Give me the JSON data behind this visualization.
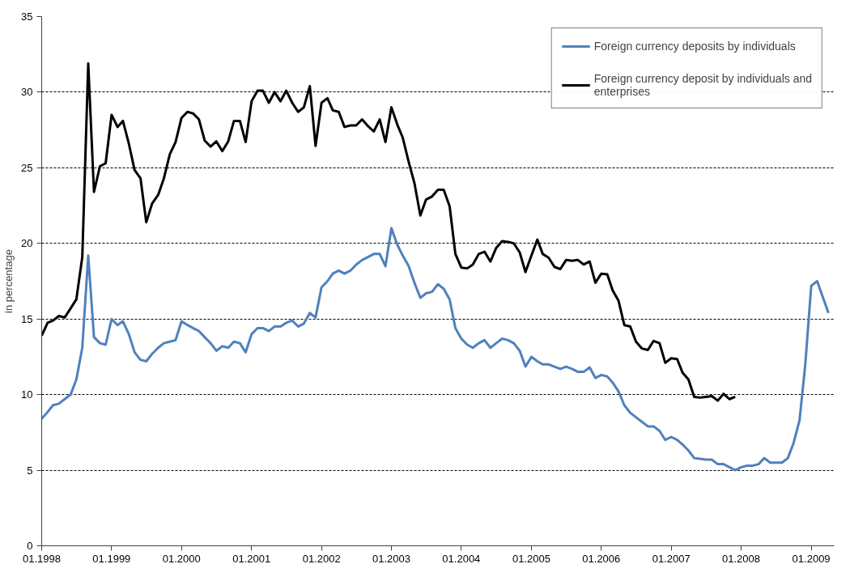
{
  "chart_data": {
    "type": "line",
    "ylabel": "in percentage",
    "x": [
      "1998-01",
      "1998-02",
      "1998-03",
      "1998-04",
      "1998-05",
      "1998-06",
      "1998-07",
      "1998-08",
      "1998-09",
      "1998-10",
      "1998-11",
      "1998-12",
      "1999-01",
      "1999-02",
      "1999-03",
      "1999-04",
      "1999-05",
      "1999-06",
      "1999-07",
      "1999-08",
      "1999-09",
      "1999-10",
      "1999-11",
      "1999-12",
      "2000-01",
      "2000-02",
      "2000-03",
      "2000-04",
      "2000-05",
      "2000-06",
      "2000-07",
      "2000-08",
      "2000-09",
      "2000-10",
      "2000-11",
      "2000-12",
      "2001-01",
      "2001-02",
      "2001-03",
      "2001-04",
      "2001-05",
      "2001-06",
      "2001-07",
      "2001-08",
      "2001-09",
      "2001-10",
      "2001-11",
      "2001-12",
      "2002-01",
      "2002-02",
      "2002-03",
      "2002-04",
      "2002-05",
      "2002-06",
      "2002-07",
      "2002-08",
      "2002-09",
      "2002-10",
      "2002-11",
      "2002-12",
      "2003-01",
      "2003-02",
      "2003-03",
      "2003-04",
      "2003-05",
      "2003-06",
      "2003-07",
      "2003-08",
      "2003-09",
      "2003-10",
      "2003-11",
      "2003-12",
      "2004-01",
      "2004-02",
      "2004-03",
      "2004-04",
      "2004-05",
      "2004-06",
      "2004-07",
      "2004-08",
      "2004-09",
      "2004-10",
      "2004-11",
      "2004-12",
      "2005-01",
      "2005-02",
      "2005-03",
      "2005-04",
      "2005-05",
      "2005-06",
      "2005-07",
      "2005-08",
      "2005-09",
      "2005-10",
      "2005-11",
      "2005-12",
      "2006-01",
      "2006-02",
      "2006-03",
      "2006-04",
      "2006-05",
      "2006-06",
      "2006-07",
      "2006-08",
      "2006-09",
      "2006-10",
      "2006-11",
      "2006-12",
      "2007-01",
      "2007-02",
      "2007-03",
      "2007-04",
      "2007-05",
      "2007-06",
      "2007-07",
      "2007-08",
      "2007-09",
      "2007-10",
      "2007-11",
      "2007-12",
      "2008-01",
      "2008-02",
      "2008-03",
      "2008-04",
      "2008-05",
      "2008-06",
      "2008-07",
      "2008-08",
      "2008-09",
      "2008-10",
      "2008-11",
      "2008-12",
      "2009-01",
      "2009-02",
      "2009-03",
      "2009-04"
    ],
    "series": [
      {
        "name": "Foreign currency deposits by individuals",
        "color": "#4f81bd",
        "values": [
          8.4,
          8.85,
          9.3,
          9.4,
          9.7,
          10.0,
          11.0,
          13.1,
          19.2,
          13.8,
          13.4,
          13.3,
          15.0,
          14.6,
          14.85,
          14.0,
          12.8,
          12.3,
          12.2,
          12.7,
          13.1,
          13.4,
          13.5,
          13.6,
          14.85,
          14.6,
          14.4,
          14.2,
          13.8,
          13.4,
          12.9,
          13.2,
          13.1,
          13.5,
          13.4,
          12.8,
          14.0,
          14.4,
          14.4,
          14.2,
          14.5,
          14.5,
          14.75,
          14.9,
          14.5,
          14.7,
          15.4,
          15.1,
          17.1,
          17.5,
          18.0,
          18.2,
          18.0,
          18.2,
          18.6,
          18.9,
          19.1,
          19.3,
          19.3,
          18.5,
          21.0,
          19.9,
          19.2,
          18.5,
          17.4,
          16.4,
          16.7,
          16.8,
          17.3,
          17.0,
          16.3,
          14.4,
          13.7,
          13.3,
          13.1,
          13.4,
          13.6,
          13.1,
          13.4,
          13.7,
          13.6,
          13.4,
          12.9,
          11.85,
          12.5,
          12.2,
          12.0,
          12.0,
          11.85,
          11.7,
          11.85,
          11.7,
          11.5,
          11.5,
          11.8,
          11.1,
          11.3,
          11.2,
          10.8,
          10.2,
          9.3,
          8.8,
          8.5,
          8.2,
          7.9,
          7.9,
          7.6,
          7.0,
          7.2,
          7.0,
          6.7,
          6.3,
          5.8,
          5.75,
          5.7,
          5.7,
          5.4,
          5.4,
          5.2,
          5.0,
          5.2,
          5.3,
          5.3,
          5.4,
          5.8,
          5.5,
          5.5,
          5.5,
          5.8,
          6.8,
          8.3,
          12.0,
          17.2,
          17.5,
          16.5,
          15.4
        ]
      },
      {
        "name": "Foreign currency deposit by individuals and enterprises",
        "color": "#000000",
        "values": [
          13.9,
          14.75,
          14.9,
          15.2,
          15.1,
          15.7,
          16.3,
          19.1,
          31.9,
          23.4,
          25.1,
          25.3,
          28.5,
          27.7,
          28.1,
          26.6,
          24.85,
          24.3,
          21.4,
          22.65,
          23.2,
          24.3,
          25.9,
          26.7,
          28.3,
          28.7,
          28.6,
          28.2,
          26.8,
          26.4,
          26.75,
          26.1,
          26.75,
          28.1,
          28.1,
          26.7,
          29.4,
          30.1,
          30.1,
          29.3,
          30.0,
          29.4,
          30.1,
          29.3,
          28.7,
          29.0,
          30.4,
          26.45,
          29.3,
          29.6,
          28.8,
          28.7,
          27.7,
          27.8,
          27.8,
          28.2,
          27.75,
          27.4,
          28.2,
          26.7,
          29.0,
          27.85,
          27.0,
          25.4,
          24.0,
          21.85,
          22.9,
          23.1,
          23.55,
          23.55,
          22.45,
          19.3,
          18.4,
          18.35,
          18.6,
          19.3,
          19.45,
          18.8,
          19.7,
          20.15,
          20.1,
          20.0,
          19.4,
          18.1,
          19.2,
          20.25,
          19.3,
          19.05,
          18.45,
          18.3,
          18.9,
          18.85,
          18.9,
          18.6,
          18.8,
          17.4,
          18.0,
          17.95,
          16.9,
          16.2,
          14.6,
          14.5,
          13.5,
          13.05,
          12.95,
          13.55,
          13.4,
          12.1,
          12.4,
          12.35,
          11.45,
          11.0,
          9.85,
          9.8,
          9.85,
          9.9,
          9.6,
          10.05,
          9.7,
          9.85,
          null,
          null,
          null,
          null,
          null,
          null,
          null,
          null,
          null,
          null,
          null,
          null,
          null,
          null,
          null,
          null
        ]
      }
    ],
    "xlim": [
      "1998-01",
      "2009-05"
    ],
    "xticks": [
      {
        "value": "1998-01",
        "label": "01.1998"
      },
      {
        "value": "1999-01",
        "label": "01.1999"
      },
      {
        "value": "2000-01",
        "label": "01.2000"
      },
      {
        "value": "2001-01",
        "label": "01.2001"
      },
      {
        "value": "2002-01",
        "label": "01.2002"
      },
      {
        "value": "2003-01",
        "label": "01.2003"
      },
      {
        "value": "2004-01",
        "label": "01.2004"
      },
      {
        "value": "2005-01",
        "label": "01.2005"
      },
      {
        "value": "2006-01",
        "label": "01.2006"
      },
      {
        "value": "2007-01",
        "label": "01.2007"
      },
      {
        "value": "2008-01",
        "label": "01.2008"
      },
      {
        "value": "2009-01",
        "label": "01.2009"
      }
    ],
    "ylim": [
      0,
      35
    ],
    "yticks": [
      0,
      5,
      10,
      15,
      20,
      25,
      30,
      35
    ],
    "grid": "y",
    "legend": "top right",
    "marker": "none",
    "line_style": "solid"
  }
}
